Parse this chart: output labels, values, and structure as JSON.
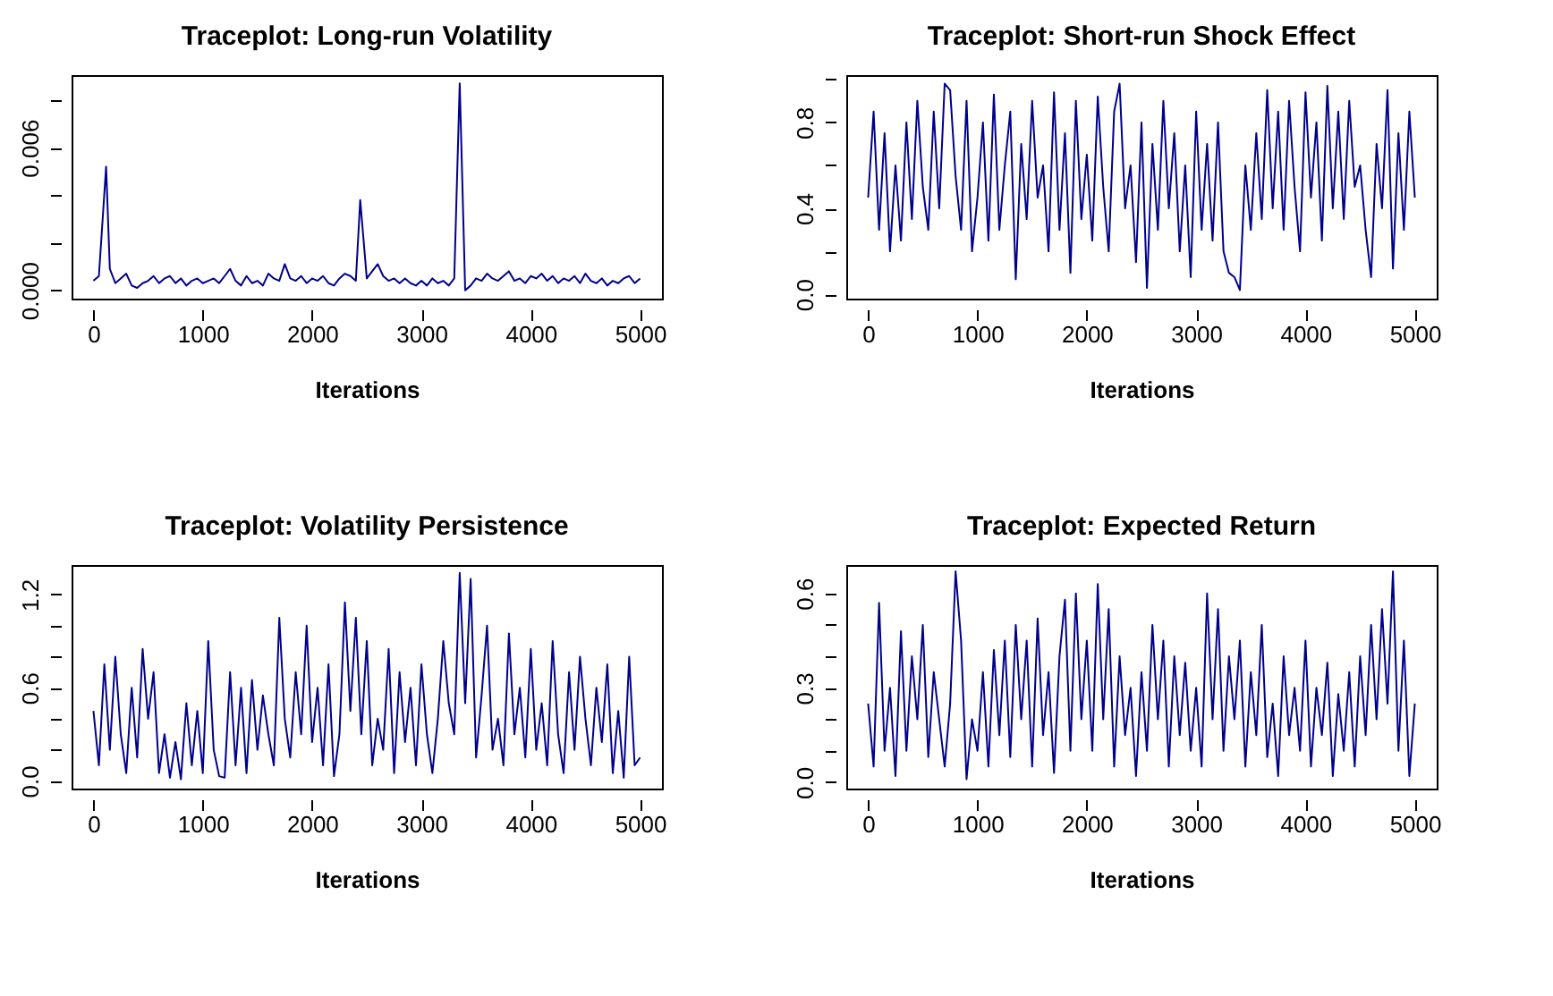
{
  "chart_data": [
    {
      "type": "line",
      "title": "Traceplot: Long-run Volatility",
      "xlabel": "Iterations",
      "color": "#00008b",
      "x": [
        0,
        50,
        116,
        150,
        200,
        250,
        300,
        350,
        400,
        450,
        500,
        550,
        600,
        650,
        700,
        750,
        800,
        850,
        900,
        950,
        1000,
        1050,
        1100,
        1150,
        1200,
        1250,
        1300,
        1350,
        1400,
        1450,
        1500,
        1550,
        1600,
        1650,
        1700,
        1750,
        1800,
        1850,
        1900,
        1950,
        2000,
        2050,
        2100,
        2150,
        2200,
        2250,
        2300,
        2350,
        2400,
        2440,
        2500,
        2550,
        2600,
        2650,
        2700,
        2750,
        2800,
        2850,
        2900,
        2950,
        3000,
        3050,
        3100,
        3150,
        3200,
        3250,
        3300,
        3350,
        3400,
        3450,
        3500,
        3550,
        3600,
        3650,
        3700,
        3750,
        3800,
        3850,
        3900,
        3950,
        4000,
        4050,
        4100,
        4150,
        4200,
        4250,
        4300,
        4350,
        4400,
        4450,
        4500,
        4550,
        4600,
        4650,
        4700,
        4750,
        4800,
        4850,
        4900,
        4950,
        5000
      ],
      "values": [
        0.0004,
        0.0006,
        0.0052,
        0.0009,
        0.0003,
        0.0005,
        0.0007,
        0.0002,
        0.0001,
        0.0003,
        0.0004,
        0.0006,
        0.0003,
        0.0005,
        0.0006,
        0.0003,
        0.0005,
        0.0002,
        0.0004,
        0.0005,
        0.0003,
        0.0004,
        0.0005,
        0.0003,
        0.0006,
        0.0009,
        0.0004,
        0.0002,
        0.0006,
        0.0003,
        0.0004,
        0.0002,
        0.0007,
        0.0005,
        0.0004,
        0.0011,
        0.0005,
        0.0004,
        0.0006,
        0.0003,
        0.0005,
        0.0004,
        0.0006,
        0.0003,
        0.0002,
        0.0005,
        0.0007,
        0.0006,
        0.0004,
        0.0038,
        0.0005,
        0.0008,
        0.0011,
        0.0006,
        0.0004,
        0.0005,
        0.0003,
        0.0005,
        0.0003,
        0.0002,
        0.0004,
        0.0002,
        0.0005,
        0.0003,
        0.0004,
        0.0002,
        0.0005,
        0.0087,
        0.0,
        0.0002,
        0.0005,
        0.0004,
        0.0007,
        0.0005,
        0.0004,
        0.0006,
        0.0008,
        0.0004,
        0.0005,
        0.0003,
        0.0006,
        0.0005,
        0.0007,
        0.0004,
        0.0006,
        0.0003,
        0.0005,
        0.0004,
        0.0006,
        0.0003,
        0.0007,
        0.0004,
        0.0003,
        0.0005,
        0.0002,
        0.0004,
        0.0003,
        0.0005,
        0.0006,
        0.0003,
        0.0005
      ],
      "xlim": [
        -200,
        5200
      ],
      "xticks": [
        0,
        1000,
        2000,
        3000,
        4000,
        5000
      ],
      "ylim": [
        -0.00035,
        0.00905
      ],
      "yticks": [
        {
          "value": 0,
          "label": "0.000"
        },
        {
          "value": 0.002,
          "label": null
        },
        {
          "value": 0.004,
          "label": null
        },
        {
          "value": 0.006,
          "label": "0.006"
        },
        {
          "value": 0.008,
          "label": null
        }
      ]
    },
    {
      "type": "line",
      "title": "Traceplot: Short-run Shock Effect",
      "xlabel": "Iterations",
      "color": "#00008b",
      "x": [
        0,
        50,
        100,
        150,
        200,
        250,
        300,
        350,
        400,
        450,
        500,
        550,
        600,
        650,
        700,
        750,
        800,
        850,
        900,
        950,
        1000,
        1050,
        1100,
        1150,
        1200,
        1250,
        1300,
        1350,
        1400,
        1450,
        1500,
        1550,
        1600,
        1650,
        1700,
        1750,
        1800,
        1850,
        1900,
        1950,
        2000,
        2050,
        2100,
        2150,
        2200,
        2250,
        2300,
        2350,
        2400,
        2450,
        2500,
        2550,
        2600,
        2650,
        2700,
        2750,
        2800,
        2850,
        2900,
        2950,
        3000,
        3050,
        3100,
        3150,
        3200,
        3250,
        3300,
        3350,
        3400,
        3450,
        3500,
        3550,
        3600,
        3650,
        3700,
        3750,
        3800,
        3850,
        3900,
        3950,
        4000,
        4050,
        4100,
        4150,
        4200,
        4250,
        4300,
        4350,
        4400,
        4450,
        4500,
        4550,
        4600,
        4650,
        4700,
        4750,
        4800,
        4850,
        4900,
        4950,
        5000
      ],
      "values": [
        0.45,
        0.85,
        0.3,
        0.75,
        0.2,
        0.6,
        0.25,
        0.8,
        0.35,
        0.9,
        0.5,
        0.3,
        0.85,
        0.4,
        0.98,
        0.95,
        0.55,
        0.3,
        0.9,
        0.2,
        0.45,
        0.8,
        0.25,
        0.93,
        0.3,
        0.6,
        0.85,
        0.07,
        0.7,
        0.35,
        0.9,
        0.45,
        0.6,
        0.2,
        0.94,
        0.3,
        0.75,
        0.1,
        0.9,
        0.35,
        0.65,
        0.25,
        0.92,
        0.5,
        0.2,
        0.85,
        0.98,
        0.4,
        0.6,
        0.15,
        0.8,
        0.03,
        0.7,
        0.3,
        0.9,
        0.4,
        0.75,
        0.2,
        0.6,
        0.08,
        0.85,
        0.3,
        0.7,
        0.25,
        0.8,
        0.2,
        0.1,
        0.08,
        0.02,
        0.6,
        0.3,
        0.75,
        0.35,
        0.95,
        0.4,
        0.85,
        0.3,
        0.9,
        0.5,
        0.2,
        0.94,
        0.45,
        0.8,
        0.25,
        0.97,
        0.4,
        0.85,
        0.35,
        0.9,
        0.5,
        0.6,
        0.3,
        0.08,
        0.7,
        0.4,
        0.95,
        0.12,
        0.75,
        0.3,
        0.85,
        0.45
      ],
      "xlim": [
        -200,
        5200
      ],
      "xticks": [
        0,
        1000,
        2000,
        3000,
        4000,
        5000
      ],
      "ylim": [
        -0.02,
        1.02
      ],
      "yticks": [
        {
          "value": 0,
          "label": "0.0"
        },
        {
          "value": 0.2,
          "label": null
        },
        {
          "value": 0.4,
          "label": "0.4"
        },
        {
          "value": 0.6,
          "label": null
        },
        {
          "value": 0.8,
          "label": "0.8"
        },
        {
          "value": 1.0,
          "label": null
        }
      ]
    },
    {
      "type": "line",
      "title": "Traceplot: Volatility Persistence",
      "xlabel": "Iterations",
      "color": "#00008b",
      "x": [
        0,
        50,
        100,
        150,
        200,
        250,
        300,
        350,
        400,
        450,
        500,
        550,
        600,
        650,
        700,
        750,
        800,
        850,
        900,
        950,
        1000,
        1050,
        1100,
        1150,
        1200,
        1250,
        1300,
        1350,
        1400,
        1450,
        1500,
        1550,
        1600,
        1650,
        1700,
        1750,
        1800,
        1850,
        1900,
        1950,
        2000,
        2050,
        2100,
        2150,
        2200,
        2250,
        2300,
        2350,
        2400,
        2450,
        2500,
        2550,
        2600,
        2650,
        2700,
        2750,
        2800,
        2850,
        2900,
        2950,
        3000,
        3050,
        3100,
        3150,
        3200,
        3250,
        3300,
        3350,
        3400,
        3450,
        3500,
        3550,
        3600,
        3650,
        3700,
        3750,
        3800,
        3850,
        3900,
        3950,
        4000,
        4050,
        4100,
        4150,
        4200,
        4250,
        4300,
        4350,
        4400,
        4450,
        4500,
        4550,
        4600,
        4650,
        4700,
        4750,
        4800,
        4850,
        4900,
        4950,
        5000
      ],
      "values": [
        0.45,
        0.1,
        0.75,
        0.2,
        0.8,
        0.3,
        0.05,
        0.6,
        0.15,
        0.85,
        0.4,
        0.7,
        0.05,
        0.3,
        0.02,
        0.25,
        0.01,
        0.5,
        0.1,
        0.45,
        0.05,
        0.9,
        0.2,
        0.03,
        0.02,
        0.7,
        0.1,
        0.6,
        0.05,
        0.65,
        0.2,
        0.55,
        0.3,
        0.1,
        1.05,
        0.4,
        0.15,
        0.7,
        0.3,
        1.0,
        0.25,
        0.6,
        0.1,
        0.75,
        0.03,
        0.3,
        1.15,
        0.45,
        1.05,
        0.3,
        0.9,
        0.1,
        0.4,
        0.2,
        0.85,
        0.05,
        0.7,
        0.25,
        0.6,
        0.1,
        0.75,
        0.3,
        0.05,
        0.4,
        0.9,
        0.5,
        0.3,
        1.34,
        0.5,
        1.3,
        0.15,
        0.55,
        1.0,
        0.2,
        0.4,
        0.1,
        0.95,
        0.3,
        0.6,
        0.15,
        0.85,
        0.2,
        0.5,
        0.1,
        0.9,
        0.3,
        0.05,
        0.7,
        0.2,
        0.8,
        0.4,
        0.1,
        0.6,
        0.25,
        0.75,
        0.05,
        0.45,
        0.02,
        0.8,
        0.1,
        0.15
      ],
      "xlim": [
        -200,
        5200
      ],
      "xticks": [
        0,
        1000,
        2000,
        3000,
        4000,
        5000
      ],
      "ylim": [
        -0.05,
        1.39
      ],
      "yticks": [
        {
          "value": 0,
          "label": "0.0"
        },
        {
          "value": 0.2,
          "label": null
        },
        {
          "value": 0.4,
          "label": null
        },
        {
          "value": 0.6,
          "label": "0.6"
        },
        {
          "value": 0.8,
          "label": null
        },
        {
          "value": 1.0,
          "label": null
        },
        {
          "value": 1.2,
          "label": "1.2"
        }
      ]
    },
    {
      "type": "line",
      "title": "Traceplot: Expected Return",
      "xlabel": "Iterations",
      "color": "#00008b",
      "x": [
        0,
        50,
        100,
        150,
        200,
        250,
        300,
        350,
        400,
        450,
        500,
        550,
        600,
        650,
        700,
        750,
        800,
        850,
        900,
        950,
        1000,
        1050,
        1100,
        1150,
        1200,
        1250,
        1300,
        1350,
        1400,
        1450,
        1500,
        1550,
        1600,
        1650,
        1700,
        1750,
        1800,
        1850,
        1900,
        1950,
        2000,
        2050,
        2100,
        2150,
        2200,
        2250,
        2300,
        2350,
        2400,
        2450,
        2500,
        2550,
        2600,
        2650,
        2700,
        2750,
        2800,
        2850,
        2900,
        2950,
        3000,
        3050,
        3100,
        3150,
        3200,
        3250,
        3300,
        3350,
        3400,
        3450,
        3500,
        3550,
        3600,
        3650,
        3700,
        3750,
        3800,
        3850,
        3900,
        3950,
        4000,
        4050,
        4100,
        4150,
        4200,
        4250,
        4300,
        4350,
        4400,
        4450,
        4500,
        4550,
        4600,
        4650,
        4700,
        4750,
        4800,
        4850,
        4900,
        4950,
        5000
      ],
      "values": [
        0.25,
        0.05,
        0.57,
        0.1,
        0.3,
        0.02,
        0.48,
        0.1,
        0.4,
        0.2,
        0.5,
        0.08,
        0.35,
        0.2,
        0.05,
        0.25,
        0.67,
        0.45,
        0.01,
        0.2,
        0.1,
        0.35,
        0.05,
        0.42,
        0.15,
        0.45,
        0.08,
        0.5,
        0.2,
        0.45,
        0.05,
        0.52,
        0.15,
        0.35,
        0.03,
        0.4,
        0.58,
        0.1,
        0.6,
        0.2,
        0.45,
        0.1,
        0.63,
        0.2,
        0.55,
        0.05,
        0.4,
        0.15,
        0.3,
        0.02,
        0.35,
        0.1,
        0.5,
        0.2,
        0.45,
        0.05,
        0.4,
        0.15,
        0.38,
        0.1,
        0.3,
        0.05,
        0.6,
        0.2,
        0.55,
        0.1,
        0.4,
        0.2,
        0.45,
        0.05,
        0.35,
        0.15,
        0.5,
        0.08,
        0.25,
        0.02,
        0.4,
        0.15,
        0.3,
        0.1,
        0.45,
        0.05,
        0.3,
        0.15,
        0.38,
        0.02,
        0.28,
        0.1,
        0.35,
        0.05,
        0.4,
        0.15,
        0.5,
        0.2,
        0.55,
        0.25,
        0.67,
        0.1,
        0.45,
        0.02,
        0.25
      ],
      "xlim": [
        -200,
        5200
      ],
      "xticks": [
        0,
        1000,
        2000,
        3000,
        4000,
        5000
      ],
      "ylim": [
        -0.02,
        0.69
      ],
      "yticks": [
        {
          "value": 0,
          "label": "0.0"
        },
        {
          "value": 0.1,
          "label": null
        },
        {
          "value": 0.2,
          "label": null
        },
        {
          "value": 0.3,
          "label": "0.3"
        },
        {
          "value": 0.4,
          "label": null
        },
        {
          "value": 0.5,
          "label": null
        },
        {
          "value": 0.6,
          "label": "0.6"
        }
      ]
    }
  ]
}
